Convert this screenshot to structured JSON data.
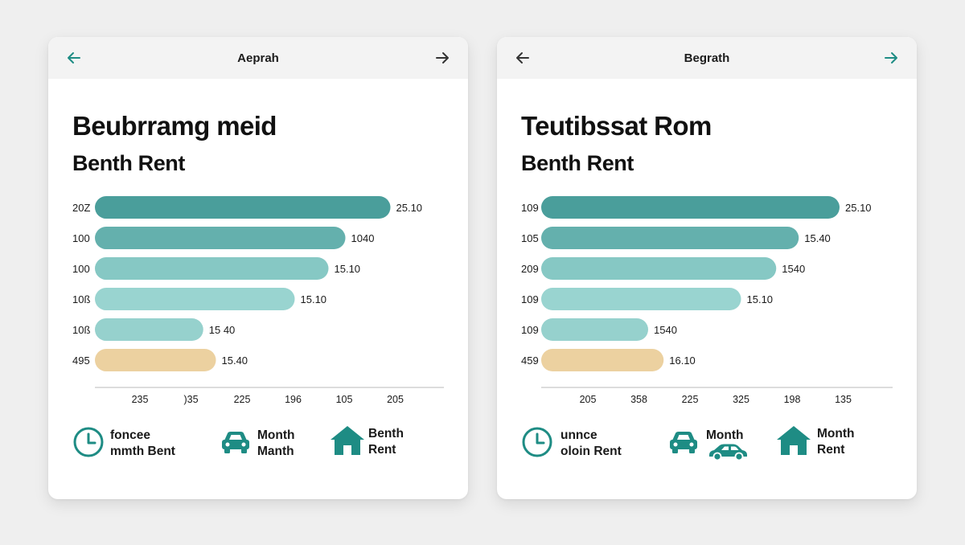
{
  "colors": {
    "accent": "#1e8c84",
    "bars": [
      "#4a9e9b",
      "#64b0ad",
      "#86c8c4",
      "#99d4d0",
      "#96d1cd",
      "#ecd1a0"
    ],
    "axis": "#c8c8c8"
  },
  "cards": [
    {
      "header": {
        "title": "Aeprah",
        "back_icon": "arrow-left-icon",
        "forward_icon": "arrow-right-icon",
        "back_color": "#1e8c84",
        "forward_color": "#333333"
      },
      "title": "Beubrramg meid",
      "subtitle": "Benth Rent",
      "chart_data": {
        "type": "bar",
        "orientation": "horizontal",
        "categories": [
          "20Z",
          "100",
          "100",
          "10ß",
          "10ß",
          "495"
        ],
        "values": [
          210,
          178,
          166,
          142,
          77,
          86
        ],
        "value_labels": [
          "25.10",
          "1040",
          "15.10",
          "15.10",
          "15 40",
          "15.40"
        ],
        "xtick_labels": [
          "235",
          ")35",
          "225",
          "196",
          "105",
          "205"
        ],
        "xlim": [
          0,
          240
        ],
        "grid": false,
        "legend": "bottom"
      },
      "legend": [
        {
          "icon": "clock-icon",
          "lines": [
            "foncee",
            "mmth Bent"
          ]
        },
        {
          "icon": "car-icon",
          "lines": [
            "Month",
            "Manth"
          ]
        },
        {
          "icon": "house-icon",
          "lines": [
            "Benth",
            "Rent"
          ]
        }
      ]
    },
    {
      "header": {
        "title": "Begrath",
        "back_icon": "arrow-left-icon",
        "forward_icon": "arrow-right-icon",
        "back_color": "#333333",
        "forward_color": "#1e8c84"
      },
      "title": "Teutibssat Rom",
      "subtitle": "Benth Rent",
      "chart_data": {
        "type": "bar",
        "orientation": "horizontal",
        "categories": [
          "109",
          "105",
          "209",
          "109",
          "109",
          "459"
        ],
        "values": [
          212,
          183,
          167,
          142,
          76,
          87
        ],
        "value_labels": [
          "25.10",
          "15.40",
          "1540",
          "15.10",
          "1540",
          "16.10"
        ],
        "xtick_labels": [
          "205",
          "358",
          "225",
          "325",
          "198",
          "135"
        ],
        "xlim": [
          0,
          240
        ],
        "grid": false,
        "legend": "bottom"
      },
      "legend": [
        {
          "icon": "clock-icon",
          "lines": [
            "unnce",
            "oloin Rent"
          ]
        },
        {
          "icon": "cars-icon",
          "lines": [
            "Month",
            ""
          ]
        },
        {
          "icon": "house-icon",
          "lines": [
            "Month",
            "Rent"
          ]
        }
      ]
    }
  ]
}
